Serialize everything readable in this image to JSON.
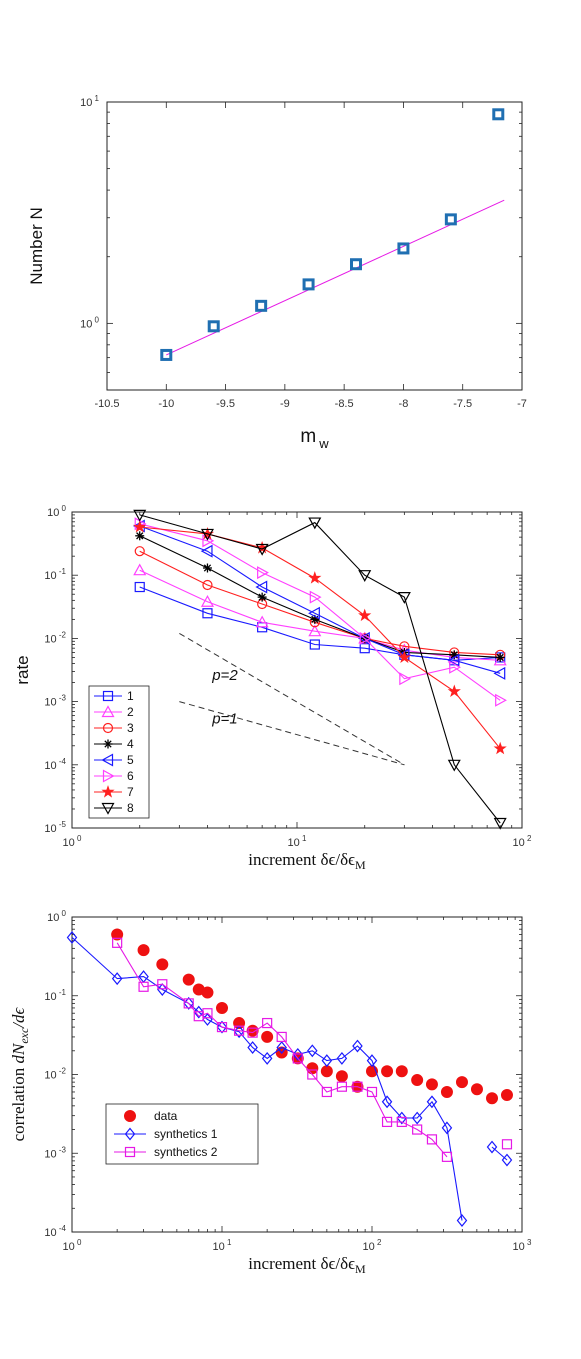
{
  "chart_data": [
    {
      "type": "scatter",
      "ylabel": "Number N",
      "xlabel_main": "m",
      "xlabel_sub": "w",
      "xscale": "linear",
      "yscale": "log",
      "xlim": [
        -10.5,
        -7
      ],
      "ylim": [
        0.5,
        10
      ],
      "xticks": [
        "-10.5",
        "-10",
        "-9.5",
        "-9",
        "-8.5",
        "-8",
        "-7.5",
        "-7"
      ],
      "yticks": [
        {
          "base": "10",
          "exp": "0"
        },
        {
          "base": "10",
          "exp": "1"
        }
      ],
      "grid": false,
      "colors": {
        "marker": "#1f6fb2",
        "fit": "#e619e6"
      },
      "series": [
        {
          "marker": "square",
          "x": [
            -10.0,
            -9.6,
            -9.2,
            -8.8,
            -8.4,
            -8.0,
            -7.6,
            -7.2
          ],
          "y": [
            0.72,
            0.97,
            1.2,
            1.5,
            1.85,
            2.18,
            2.95,
            8.8
          ]
        },
        {
          "marker": "line",
          "x": [
            -10.0,
            -7.15
          ],
          "y": [
            0.72,
            3.6
          ]
        }
      ]
    },
    {
      "type": "line",
      "ylabel": "rate",
      "xlabel": "increment δϵ/δϵ",
      "xlabel_sub": "M",
      "xscale": "log",
      "yscale": "log",
      "xlim": [
        1,
        100
      ],
      "ylim": [
        1e-05,
        1
      ],
      "xticks": [
        {
          "base": "10",
          "exp": "0"
        },
        {
          "base": "10",
          "exp": "1"
        },
        {
          "base": "10",
          "exp": "2"
        }
      ],
      "yticks": [
        {
          "base": "10",
          "exp": "-5"
        },
        {
          "base": "10",
          "exp": "-4"
        },
        {
          "base": "10",
          "exp": "-3"
        },
        {
          "base": "10",
          "exp": "-2"
        },
        {
          "base": "10",
          "exp": "-1"
        },
        {
          "base": "10",
          "exp": "0"
        }
      ],
      "grid": false,
      "legend": "bottom-left",
      "x": [
        2,
        4,
        7,
        12,
        20,
        30,
        50,
        80
      ],
      "series": [
        {
          "name": "1",
          "color": "#1a1aff",
          "marker": "square",
          "values": [
            0.065,
            0.025,
            0.015,
            0.008,
            0.007,
            0.0055,
            0.0045,
            0.005
          ]
        },
        {
          "name": "2",
          "color": "#ff40ff",
          "marker": "triangle-up",
          "values": [
            0.12,
            0.038,
            0.018,
            0.013,
            0.01,
            0.0065,
            0.005,
            0.0045
          ]
        },
        {
          "name": "3",
          "color": "#ff2020",
          "marker": "circle",
          "values": [
            0.24,
            0.07,
            0.035,
            0.018,
            0.01,
            0.0075,
            0.006,
            0.0055
          ]
        },
        {
          "name": "4",
          "color": "#000000",
          "marker": "asterisk",
          "values": [
            0.42,
            0.13,
            0.045,
            0.02,
            0.01,
            0.006,
            0.0055,
            0.005
          ]
        },
        {
          "name": "5",
          "color": "#1a1aff",
          "marker": "triangle-left",
          "values": [
            0.6,
            0.24,
            0.065,
            0.025,
            0.01,
            0.0055,
            0.0045,
            0.0028
          ]
        },
        {
          "name": "6",
          "color": "#ff40ff",
          "marker": "triangle-right",
          "values": [
            0.65,
            0.35,
            0.11,
            0.045,
            0.01,
            0.0023,
            0.0035,
            0.00105
          ]
        },
        {
          "name": "7",
          "color": "#ff2020",
          "marker": "star",
          "values": [
            0.58,
            0.45,
            0.27,
            0.09,
            0.023,
            0.005,
            0.00145,
            0.00018
          ]
        },
        {
          "name": "8",
          "color": "#000000",
          "marker": "triangle-down",
          "values": [
            0.9,
            0.45,
            0.26,
            0.68,
            0.1,
            0.045,
            0.0001,
            1.2e-05
          ]
        }
      ],
      "reference_lines": [
        {
          "label": "p=2",
          "x": [
            3,
            30
          ],
          "y": [
            0.012,
            0.0001
          ]
        },
        {
          "label": "p=1",
          "x": [
            3,
            30
          ],
          "y": [
            0.001,
            0.0001
          ]
        }
      ]
    },
    {
      "type": "scatter",
      "ylabel": "correlation",
      "ylabel_math": "dN",
      "ylabel_sub": "exc",
      "ylabel_tail": "/dϵ",
      "xlabel": "increment δϵ/δϵ",
      "xlabel_sub": "M",
      "xscale": "log",
      "yscale": "log",
      "xlim": [
        1,
        1000
      ],
      "ylim": [
        0.0001,
        1
      ],
      "xticks": [
        {
          "base": "10",
          "exp": "0"
        },
        {
          "base": "10",
          "exp": "1"
        },
        {
          "base": "10",
          "exp": "2"
        },
        {
          "base": "10",
          "exp": "3"
        }
      ],
      "yticks": [
        {
          "base": "10",
          "exp": "-4"
        },
        {
          "base": "10",
          "exp": "-3"
        },
        {
          "base": "10",
          "exp": "-2"
        },
        {
          "base": "10",
          "exp": "-1"
        },
        {
          "base": "10",
          "exp": "0"
        }
      ],
      "grid": false,
      "legend": "bottom-left",
      "series": [
        {
          "name": "data",
          "color": "#ee1111",
          "marker": "filled-circle",
          "line": false,
          "x": [
            2,
            3,
            4,
            6,
            7,
            8,
            10,
            13,
            16,
            20,
            25,
            32,
            40,
            50,
            63,
            80,
            100,
            126,
            158,
            200,
            251,
            316,
            398,
            501,
            631,
            794
          ],
          "y": [
            0.6,
            0.38,
            0.25,
            0.16,
            0.12,
            0.11,
            0.07,
            0.045,
            0.036,
            0.03,
            0.019,
            0.016,
            0.012,
            0.011,
            0.0095,
            0.007,
            0.011,
            0.011,
            0.011,
            0.0085,
            0.0075,
            0.006,
            0.008,
            0.0065,
            0.005,
            0.0055
          ]
        },
        {
          "name": "synthetics 1",
          "color": "#1a1aff",
          "marker": "diamond",
          "line": true,
          "x": [
            1,
            2,
            3,
            4,
            6,
            7,
            8,
            10,
            13,
            16,
            20,
            25,
            32,
            40,
            50,
            63,
            80,
            100,
            126,
            158,
            200,
            251,
            316,
            398
          ],
          "y": [
            0.55,
            0.165,
            0.175,
            0.12,
            0.08,
            0.062,
            0.05,
            0.04,
            0.035,
            0.022,
            0.016,
            0.022,
            0.018,
            0.02,
            0.015,
            0.016,
            0.023,
            0.015,
            0.0045,
            0.0028,
            0.0028,
            0.0045,
            0.0021,
            0.00014
          ]
        },
        {
          "name": "synthetics 1 tail",
          "color": "#1a1aff",
          "marker": "diamond",
          "line": true,
          "x": [
            631,
            794
          ],
          "y": [
            0.0012,
            0.00082
          ]
        },
        {
          "name": "synthetics 2",
          "color": "#e619e6",
          "marker": "square",
          "line": true,
          "x": [
            2,
            3,
            4,
            6,
            7,
            8,
            10,
            13,
            16,
            20,
            25,
            32,
            40,
            50,
            63,
            80,
            100,
            126,
            158,
            200,
            251,
            316
          ],
          "y": [
            0.47,
            0.13,
            0.14,
            0.08,
            0.055,
            0.06,
            0.04,
            0.036,
            0.034,
            0.045,
            0.03,
            0.016,
            0.01,
            0.006,
            0.007,
            0.007,
            0.006,
            0.0025,
            0.0025,
            0.002,
            0.0015,
            0.0009
          ]
        },
        {
          "name": "synthetics 2 tail",
          "color": "#e619e6",
          "marker": "square",
          "line": true,
          "x": [
            794
          ],
          "y": [
            0.0013
          ]
        }
      ],
      "legend_entries": [
        "data",
        "synthetics 1",
        "synthetics 2"
      ]
    }
  ]
}
